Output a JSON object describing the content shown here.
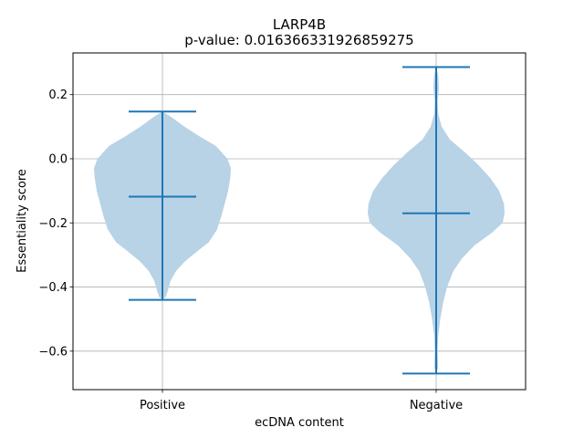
{
  "chart_data": {
    "type": "violin",
    "title": "LARP4B",
    "subtitle": "p-value: 0.016366331926859275",
    "xlabel": "ecDNA content",
    "ylabel": "Essentiality score",
    "categories": [
      "Positive",
      "Negative"
    ],
    "ylim": [
      -0.72,
      0.33
    ],
    "yticks": [
      0.2,
      0.0,
      -0.2,
      -0.4,
      -0.6
    ],
    "ytick_labels": [
      "0.2",
      "0.0",
      "−0.2",
      "−0.4",
      "−0.6"
    ],
    "grid": true,
    "colors": {
      "body": "#b8d2e6",
      "line": "#1f77b4",
      "grid": "#b0b0b0"
    },
    "violins": [
      {
        "category": "Positive",
        "min": -0.44,
        "max": 0.147,
        "median": -0.118,
        "density": [
          [
            0.147,
            0.0
          ],
          [
            0.13,
            0.13
          ],
          [
            0.1,
            0.32
          ],
          [
            0.07,
            0.54
          ],
          [
            0.04,
            0.78
          ],
          [
            0.0,
            0.95
          ],
          [
            -0.03,
            1.0
          ],
          [
            -0.06,
            0.99
          ],
          [
            -0.1,
            0.96
          ],
          [
            -0.14,
            0.91
          ],
          [
            -0.18,
            0.86
          ],
          [
            -0.22,
            0.8
          ],
          [
            -0.26,
            0.68
          ],
          [
            -0.29,
            0.5
          ],
          [
            -0.32,
            0.33
          ],
          [
            -0.35,
            0.2
          ],
          [
            -0.38,
            0.12
          ],
          [
            -0.41,
            0.08
          ],
          [
            -0.43,
            0.05
          ],
          [
            -0.44,
            0.0
          ]
        ]
      },
      {
        "category": "Negative",
        "min": -0.67,
        "max": 0.286,
        "median": -0.17,
        "density": [
          [
            0.286,
            0.0
          ],
          [
            0.26,
            0.03
          ],
          [
            0.22,
            0.04
          ],
          [
            0.18,
            0.02
          ],
          [
            0.14,
            0.03
          ],
          [
            0.1,
            0.08
          ],
          [
            0.06,
            0.2
          ],
          [
            0.02,
            0.42
          ],
          [
            -0.02,
            0.62
          ],
          [
            -0.06,
            0.79
          ],
          [
            -0.1,
            0.92
          ],
          [
            -0.14,
            0.99
          ],
          [
            -0.17,
            1.0
          ],
          [
            -0.2,
            0.97
          ],
          [
            -0.23,
            0.82
          ],
          [
            -0.27,
            0.56
          ],
          [
            -0.31,
            0.38
          ],
          [
            -0.35,
            0.25
          ],
          [
            -0.4,
            0.16
          ],
          [
            -0.45,
            0.1
          ],
          [
            -0.5,
            0.06
          ],
          [
            -0.55,
            0.03
          ],
          [
            -0.6,
            0.02
          ],
          [
            -0.65,
            0.03
          ],
          [
            -0.67,
            0.0
          ]
        ]
      }
    ]
  }
}
